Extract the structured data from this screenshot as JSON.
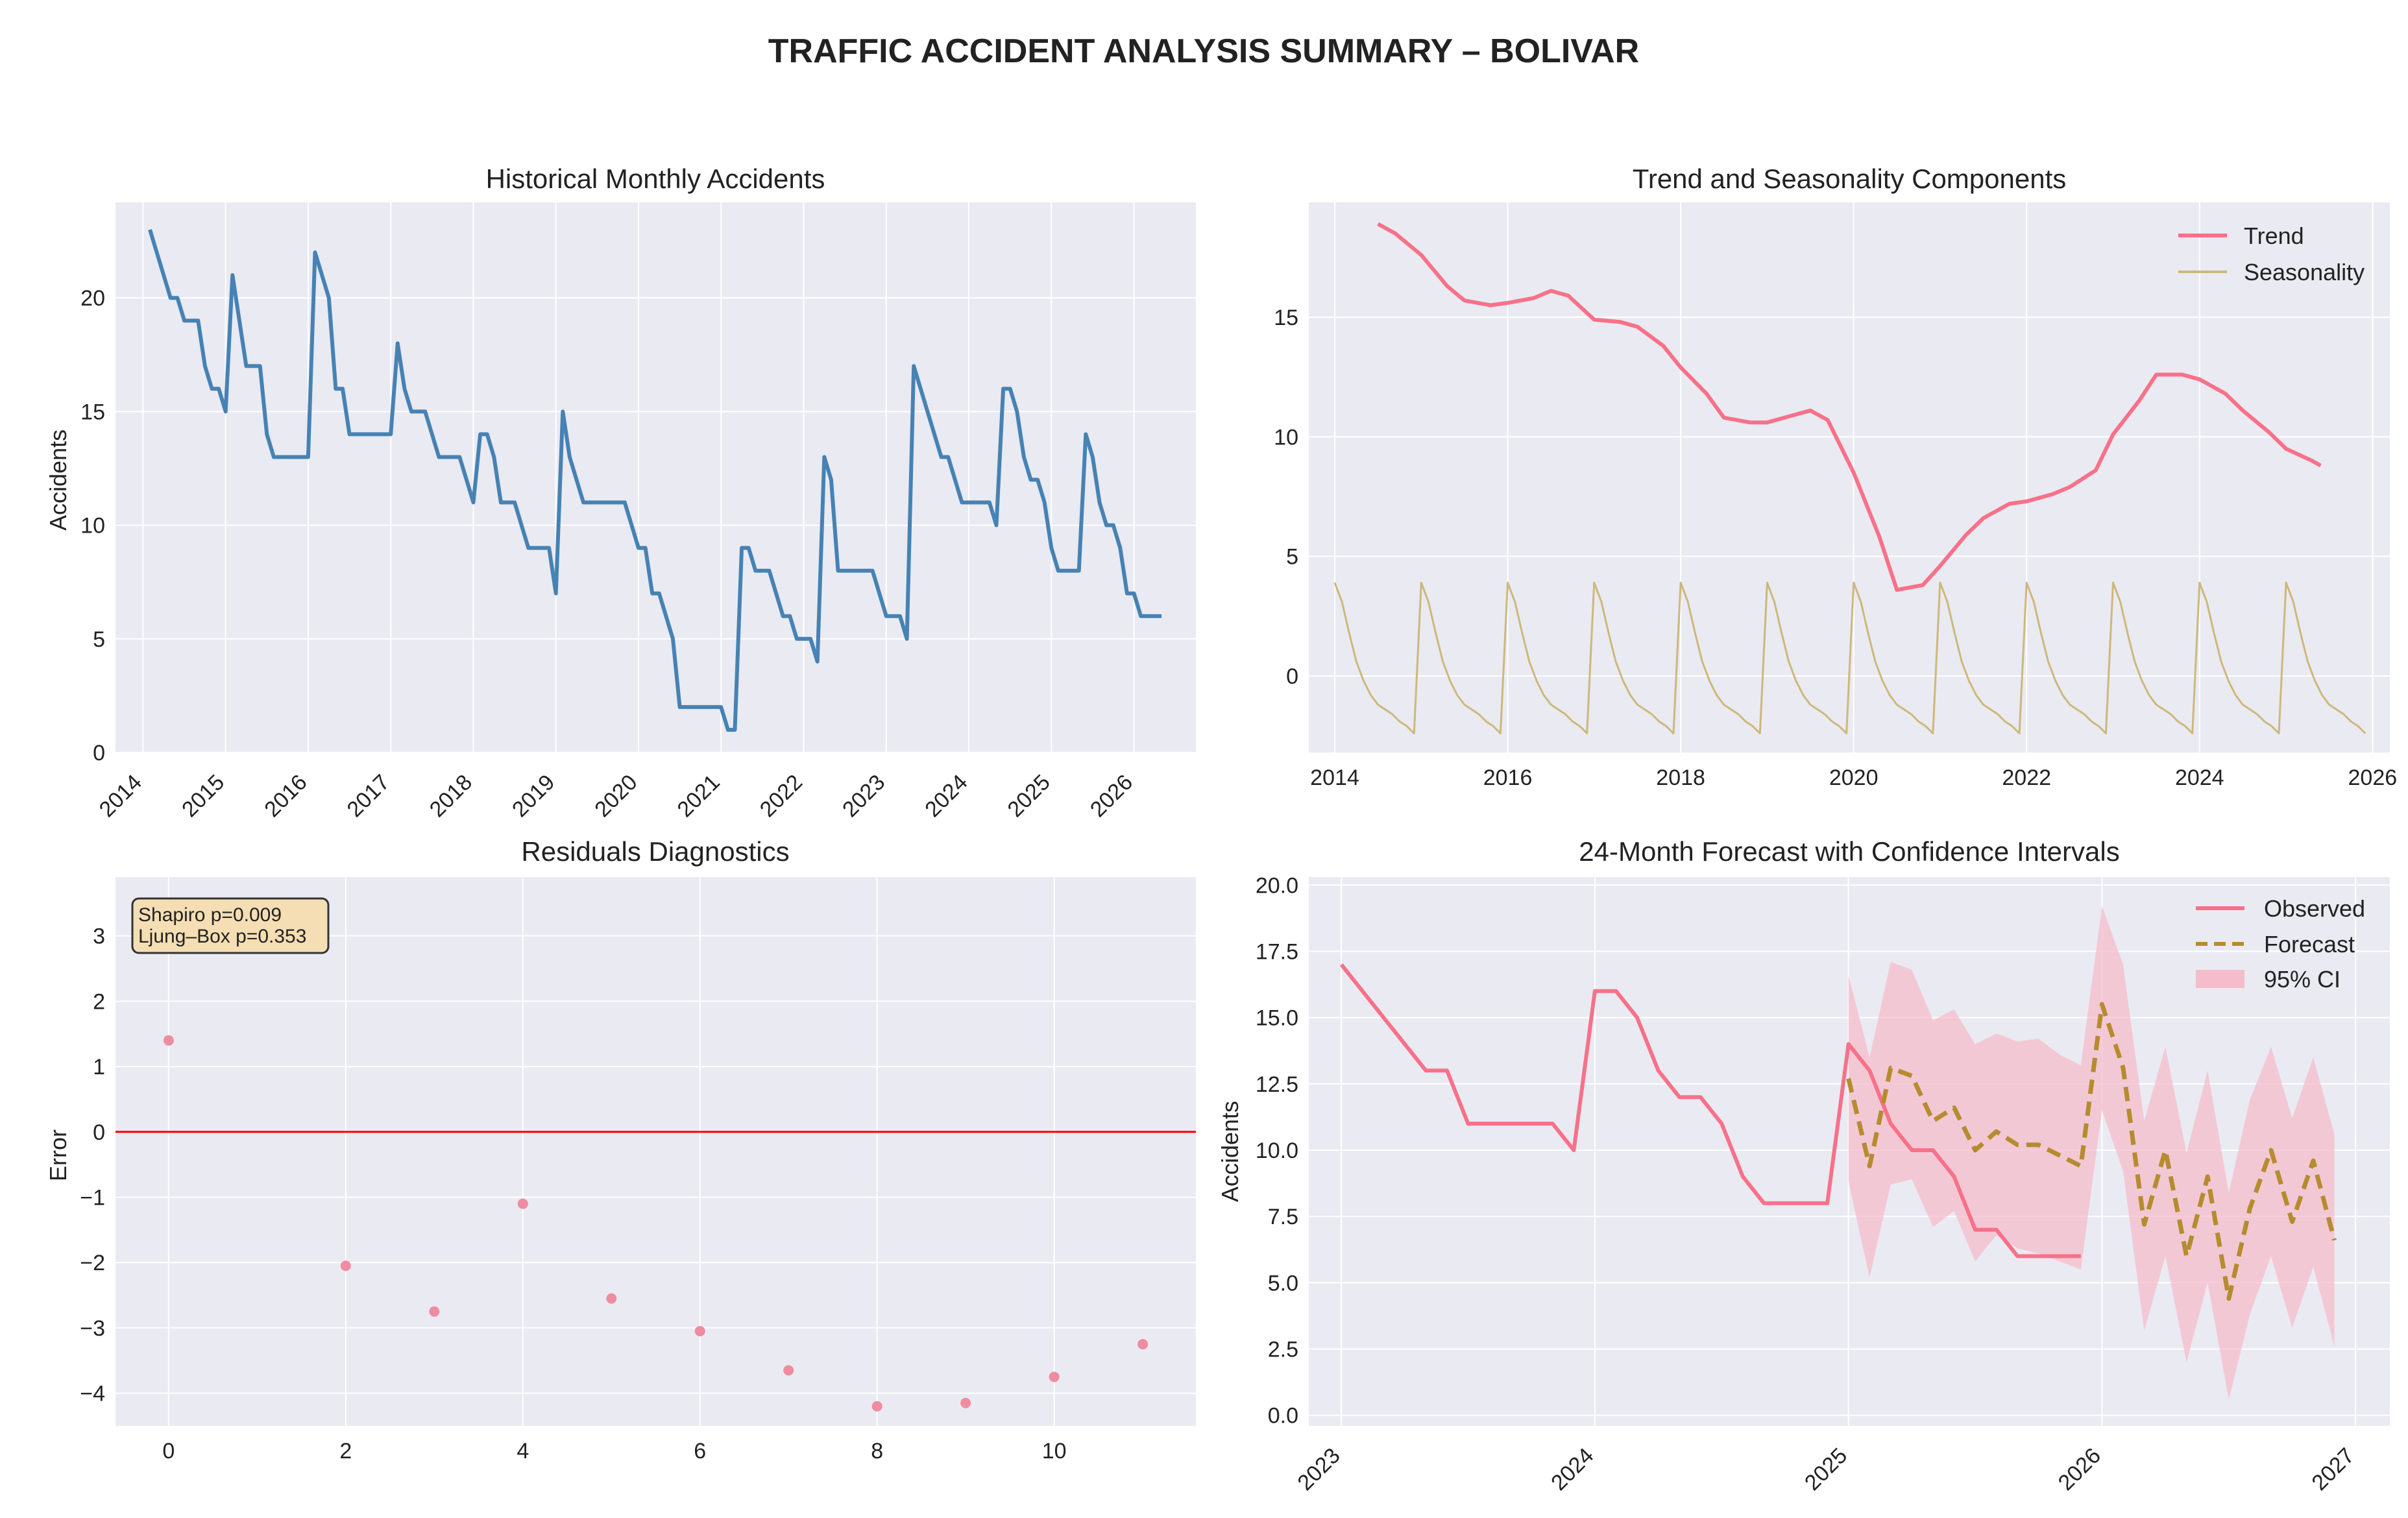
{
  "figure": {
    "title": "TRAFFIC ACCIDENT ANALYSIS SUMMARY – BOLIVAR"
  },
  "colors": {
    "background": "#EAEAF2",
    "grid": "#FFFFFF",
    "historical_line": "#4682B4",
    "trend": "#F77189",
    "seasonality": "#CDB87B",
    "residual_points": "#F08CA0",
    "zero_line": "#FF0000",
    "observed": "#F77189",
    "forecast": "#B58C2E",
    "ci_fill": "#F5BCCB"
  },
  "chart_data": [
    {
      "id": "historical",
      "type": "line",
      "title": "Historical Monthly Accidents",
      "xlabel": "",
      "ylabel": "Accidents",
      "x_start": "2014-02",
      "x_step": "month",
      "xlim": [
        "2013-09",
        "2026-10"
      ],
      "ylim": [
        0,
        24.2
      ],
      "xticks": [
        "2014",
        "2015",
        "2016",
        "2017",
        "2018",
        "2019",
        "2020",
        "2021",
        "2022",
        "2023",
        "2024",
        "2025",
        "2026"
      ],
      "yticks": [
        0,
        5,
        10,
        15,
        20
      ],
      "grid": true,
      "series": [
        {
          "values": [
            23,
            22,
            21,
            20,
            20,
            19,
            19,
            19,
            17,
            16,
            16,
            15,
            21,
            19,
            17,
            17,
            17,
            14,
            13,
            13,
            13,
            13,
            13,
            13,
            22,
            21,
            20,
            16,
            16,
            14,
            14,
            14,
            14,
            14,
            14,
            14,
            18,
            16,
            15,
            15,
            15,
            14,
            13,
            13,
            13,
            13,
            12,
            11,
            14,
            14,
            13,
            11,
            11,
            11,
            10,
            9,
            9,
            9,
            9,
            7,
            15,
            13,
            12,
            11,
            11,
            11,
            11,
            11,
            11,
            11,
            10,
            9,
            9,
            7,
            7,
            6,
            5,
            2,
            2,
            2,
            2,
            2,
            2,
            2,
            1,
            1,
            9,
            9,
            8,
            8,
            8,
            7,
            6,
            6,
            5,
            5,
            5,
            4,
            13,
            12,
            8,
            8,
            8,
            8,
            8,
            8,
            7,
            6,
            6,
            6,
            5,
            17,
            16,
            15,
            14,
            13,
            13,
            12,
            11,
            11,
            11,
            11,
            11,
            10,
            16,
            16,
            15,
            13,
            12,
            12,
            11,
            9,
            8,
            8,
            8,
            8,
            14,
            13,
            11,
            10,
            10,
            9,
            7,
            7,
            6,
            6,
            6,
            6
          ]
        }
      ]
    },
    {
      "id": "decomposition",
      "type": "line",
      "title": "Trend and Seasonality Components",
      "xlabel": "",
      "ylabel": "",
      "xlim": [
        2013.7,
        2026.2
      ],
      "ylim": [
        -3.2,
        19.8
      ],
      "xticks": [
        2014,
        2016,
        2018,
        2020,
        2022,
        2024,
        2026
      ],
      "yticks": [
        0,
        5,
        10,
        15
      ],
      "grid": true,
      "legend": "top-right",
      "series": [
        {
          "name": "Trend",
          "x_start": 2014.5,
          "points": [
            [
              2014.5,
              18.9
            ],
            [
              2014.7,
              18.5
            ],
            [
              2015.0,
              17.6
            ],
            [
              2015.3,
              16.3
            ],
            [
              2015.5,
              15.7
            ],
            [
              2015.8,
              15.5
            ],
            [
              2016.0,
              15.6
            ],
            [
              2016.3,
              15.8
            ],
            [
              2016.5,
              16.1
            ],
            [
              2016.7,
              15.9
            ],
            [
              2017.0,
              14.9
            ],
            [
              2017.3,
              14.8
            ],
            [
              2017.5,
              14.6
            ],
            [
              2017.8,
              13.8
            ],
            [
              2018.0,
              12.9
            ],
            [
              2018.3,
              11.8
            ],
            [
              2018.5,
              10.8
            ],
            [
              2018.8,
              10.6
            ],
            [
              2019.0,
              10.6
            ],
            [
              2019.3,
              10.9
            ],
            [
              2019.5,
              11.1
            ],
            [
              2019.7,
              10.7
            ],
            [
              2020.0,
              8.5
            ],
            [
              2020.3,
              5.8
            ],
            [
              2020.5,
              3.6
            ],
            [
              2020.8,
              3.8
            ],
            [
              2021.0,
              4.6
            ],
            [
              2021.3,
              5.9
            ],
            [
              2021.5,
              6.6
            ],
            [
              2021.8,
              7.2
            ],
            [
              2022.0,
              7.3
            ],
            [
              2022.3,
              7.6
            ],
            [
              2022.5,
              7.9
            ],
            [
              2022.8,
              8.6
            ],
            [
              2023.0,
              10.1
            ],
            [
              2023.3,
              11.5
            ],
            [
              2023.5,
              12.6
            ],
            [
              2023.8,
              12.6
            ],
            [
              2024.0,
              12.4
            ],
            [
              2024.3,
              11.8
            ],
            [
              2024.5,
              11.1
            ],
            [
              2024.8,
              10.2
            ],
            [
              2025.0,
              9.5
            ],
            [
              2025.3,
              9.0
            ],
            [
              2025.4,
              8.8
            ]
          ]
        },
        {
          "name": "Seasonality",
          "pattern": [
            3.9,
            3.1,
            1.8,
            0.6,
            -0.2,
            -0.8,
            -1.2,
            -1.4,
            -1.6,
            -1.9,
            -2.1,
            -2.4
          ],
          "x_start": 2014.0,
          "periods": 12
        }
      ]
    },
    {
      "id": "residuals",
      "type": "scatter",
      "title": "Residuals Diagnostics",
      "xlabel": "",
      "ylabel": "Error",
      "xlim": [
        -0.6,
        11.6
      ],
      "ylim": [
        -4.5,
        3.9
      ],
      "xticks": [
        0,
        2,
        4,
        6,
        8,
        10
      ],
      "yticks": [
        -4,
        -3,
        -2,
        -1,
        0,
        1,
        2,
        3
      ],
      "grid": true,
      "hline": 0,
      "annotations": [
        "Shapiro p=0.009",
        "Ljung–Box p=0.353"
      ],
      "points": [
        [
          0,
          1.4
        ],
        [
          2,
          -2.05
        ],
        [
          3,
          -2.75
        ],
        [
          4,
          -1.1
        ],
        [
          5,
          -2.55
        ],
        [
          6,
          -3.05
        ],
        [
          7,
          -3.65
        ],
        [
          8,
          -4.2
        ],
        [
          9,
          -4.15
        ],
        [
          10,
          -3.75
        ],
        [
          11,
          -3.25
        ]
      ]
    },
    {
      "id": "forecast",
      "type": "line",
      "title": "24-Month Forecast with Confidence Intervals",
      "xlabel": "",
      "ylabel": "Accidents",
      "xlim": [
        "2022-11-15",
        "2027-02-20"
      ],
      "ylim": [
        -0.4,
        20.3
      ],
      "xticks": [
        "2023",
        "2024",
        "2025",
        "2026",
        "2027"
      ],
      "yticks": [
        "0.0",
        "2.5",
        "5.0",
        "7.5",
        "10.0",
        "12.5",
        "15.0",
        "17.5",
        "20.0"
      ],
      "grid": true,
      "legend": "top-right",
      "series": [
        {
          "name": "Observed",
          "x_start": "2023-01",
          "values": [
            17,
            16,
            15,
            14,
            13,
            13,
            11,
            11,
            11,
            11,
            11,
            10,
            16,
            16,
            15,
            13,
            12,
            12,
            11,
            9,
            8,
            8,
            8,
            8,
            14,
            13,
            11,
            10,
            10,
            9,
            7,
            7,
            6,
            6,
            6,
            6
          ]
        },
        {
          "name": "Forecast",
          "x_start": "2025-01",
          "values": [
            12.7,
            9.4,
            13.1,
            12.8,
            11.1,
            11.6,
            10.0,
            10.7,
            10.2,
            10.2,
            9.8,
            9.4,
            15.5,
            13.1,
            7.2,
            10.0,
            6.0,
            9.0,
            4.4,
            7.8,
            10.0,
            7.3,
            9.6,
            6.6
          ]
        },
        {
          "name": "95% CI",
          "x_start": "2025-01",
          "lower": [
            8.8,
            5.2,
            8.7,
            8.9,
            7.1,
            7.7,
            5.8,
            6.8,
            6.3,
            6.1,
            5.8,
            5.5,
            11.5,
            9.2,
            3.2,
            6.0,
            2.0,
            5.0,
            0.6,
            3.8,
            6.0,
            3.3,
            5.6,
            2.6
          ],
          "upper": [
            16.6,
            13.5,
            17.1,
            16.8,
            14.9,
            15.3,
            14.0,
            14.4,
            14.1,
            14.2,
            13.6,
            13.2,
            19.2,
            17.0,
            11.1,
            13.9,
            9.9,
            13.0,
            8.4,
            11.9,
            13.9,
            11.2,
            13.5,
            10.6
          ]
        }
      ]
    }
  ]
}
